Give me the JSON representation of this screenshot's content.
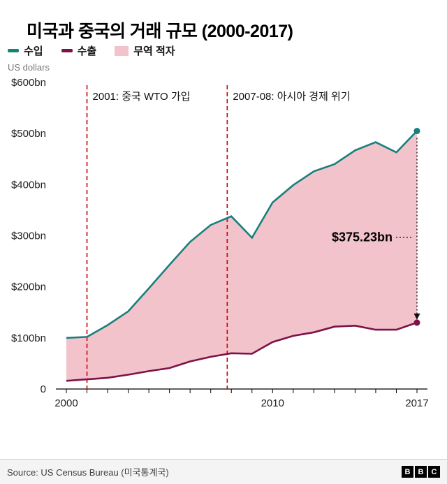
{
  "title": "미국과 중국의 거래 규모 (2000-2017)",
  "units_label": "US dollars",
  "legend": [
    {
      "label": "수입",
      "color": "#17807d",
      "type": "line"
    },
    {
      "label": "수출",
      "color": "#7c1247",
      "type": "line"
    },
    {
      "label": "무역 적자",
      "color": "#f3c3cb",
      "type": "area"
    }
  ],
  "chart_data": {
    "type": "area",
    "x": [
      2000,
      2001,
      2002,
      2003,
      2004,
      2005,
      2006,
      2007,
      2008,
      2009,
      2010,
      2011,
      2012,
      2013,
      2014,
      2015,
      2016,
      2017
    ],
    "series": [
      {
        "name": "수입",
        "color": "#17807d",
        "values": [
          100,
          102,
          125,
          152,
          197,
          243,
          288,
          321,
          338,
          296,
          365,
          399,
          426,
          440,
          467,
          483,
          463,
          505
        ]
      },
      {
        "name": "수출",
        "color": "#7c1247",
        "values": [
          16,
          19,
          22,
          28,
          35,
          41,
          54,
          63,
          70,
          69,
          92,
          104,
          111,
          122,
          124,
          116,
          116,
          130
        ]
      }
    ],
    "deficit_fill": "#f3c3cb",
    "deficit_label": "무역 적자",
    "ylim": [
      0,
      600
    ],
    "yticks": [
      {
        "value": 600,
        "label": "$600bn"
      },
      {
        "value": 500,
        "label": "$500bn"
      },
      {
        "value": 400,
        "label": "$400bn"
      },
      {
        "value": 300,
        "label": "$300bn"
      },
      {
        "value": 200,
        "label": "$200bn"
      },
      {
        "value": 100,
        "label": "$100bn"
      },
      {
        "value": 0,
        "label": "0"
      }
    ],
    "xticks": [
      {
        "value": 2000,
        "label": "2000"
      },
      {
        "value": 2010,
        "label": "2010"
      },
      {
        "value": 2017,
        "label": "2017"
      }
    ],
    "vline_color": "#cc0000",
    "vlines": [
      {
        "x": 2001,
        "label": "2001: 중국 WTO 가입"
      },
      {
        "x": 2007.8,
        "label": "2007-08: 아시아 경제 위기"
      }
    ],
    "gap_annotation": {
      "label": "$375.23bn",
      "year": 2017,
      "value": 375.23
    }
  },
  "footer": {
    "source": "Source: US Census Bureau (미국통계국)",
    "logo": [
      "B",
      "B",
      "C"
    ]
  }
}
